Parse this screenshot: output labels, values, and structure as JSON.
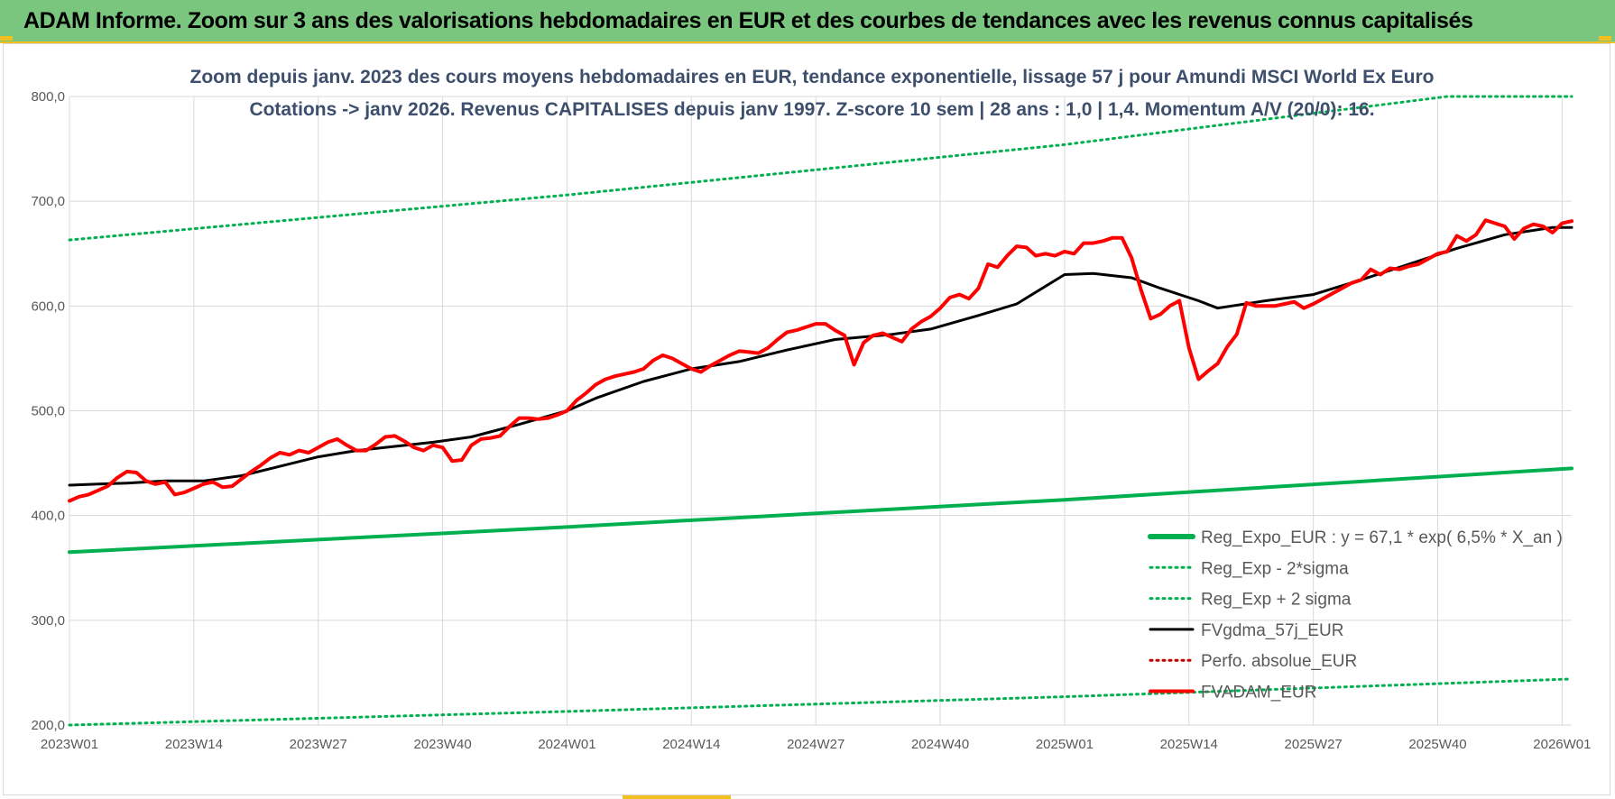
{
  "banner": {
    "title": "ADAM Informe. Zoom sur 3 ans des valorisations hebdomadaires en EUR et des courbes de tendances avec les revenus connus capitalisés"
  },
  "colors": {
    "banner_bg": "#7bc67e",
    "accent_yellow": "#f0c020",
    "reg_expo": "#00b050",
    "fvgdma": "#000000",
    "fvadam": "#ff0000",
    "perfo": "#c00000",
    "grid": "#d9d9d9",
    "title_text": "#3d4f6c"
  },
  "chart_data": {
    "type": "line",
    "title": "Zoom depuis janv. 2023 des cours moyens hebdomadaires en EUR, tendance exponentielle, lissage 57 j pour Amundi MSCI World Ex Euro",
    "subtitle": "Cotations -> janv 2026. Revenus CAPITALISES depuis janv 1997. Z-score 10 sem | 28 ans : 1,0 | 1,4. Momentum A/V (20/0): 16.",
    "xlabel": "",
    "ylabel": "",
    "ylim": [
      200,
      800
    ],
    "yticks": [
      "800,0",
      "700,0",
      "600,0",
      "500,0",
      "400,0",
      "300,0",
      "200,0"
    ],
    "xticks": [
      "2023W01",
      "2023W14",
      "2023W27",
      "2023W40",
      "2024W01",
      "2024W14",
      "2024W27",
      "2024W40",
      "2025W01",
      "2025W14",
      "2025W27",
      "2025W40",
      "2026W01"
    ],
    "x_unit": "weeks since 2023W01",
    "grid": true,
    "legend_position": "bottom-right",
    "series": [
      {
        "name": "Reg_Expo_EUR : y = 67,1 * exp( 6,5% *  X_an )",
        "style": "solid-thick",
        "color": "#00b050",
        "points": [
          [
            0,
            365
          ],
          [
            52,
            389
          ],
          [
            104,
            415
          ],
          [
            157,
            445
          ]
        ]
      },
      {
        "name": "Reg_Exp - 2*sigma",
        "style": "dotted",
        "color": "#00b050",
        "points": [
          [
            0,
            200
          ],
          [
            52,
            213
          ],
          [
            104,
            227
          ],
          [
            157,
            244
          ]
        ]
      },
      {
        "name": "Reg_Exp + 2 sigma",
        "style": "dotted",
        "color": "#00b050",
        "points": [
          [
            0,
            663
          ],
          [
            52,
            706
          ],
          [
            104,
            754
          ],
          [
            144,
            800
          ],
          [
            157,
            800
          ]
        ]
      },
      {
        "name": "FVgdma_57j_EUR",
        "style": "solid",
        "color": "#000000",
        "points": [
          [
            0,
            429
          ],
          [
            3,
            430
          ],
          [
            6,
            431
          ],
          [
            10,
            433
          ],
          [
            14,
            433
          ],
          [
            18,
            438
          ],
          [
            22,
            447
          ],
          [
            26,
            456
          ],
          [
            30,
            462
          ],
          [
            34,
            466
          ],
          [
            38,
            470
          ],
          [
            42,
            475
          ],
          [
            47,
            487
          ],
          [
            52,
            500
          ],
          [
            55,
            512
          ],
          [
            60,
            528
          ],
          [
            65,
            540
          ],
          [
            70,
            547
          ],
          [
            75,
            558
          ],
          [
            80,
            568
          ],
          [
            86,
            573
          ],
          [
            90,
            578
          ],
          [
            95,
            591
          ],
          [
            99,
            602
          ],
          [
            104,
            630
          ],
          [
            107,
            631
          ],
          [
            111,
            627
          ],
          [
            114,
            617
          ],
          [
            118,
            605
          ],
          [
            120,
            598
          ],
          [
            125,
            605
          ],
          [
            130,
            611
          ],
          [
            135,
            625
          ],
          [
            140,
            640
          ],
          [
            145,
            655
          ],
          [
            150,
            668
          ],
          [
            155,
            675
          ],
          [
            157,
            675
          ]
        ]
      },
      {
        "name": "Perfo. absolue_EUR",
        "style": "dotted",
        "color": "#c00000",
        "points": []
      },
      {
        "name": "FVADAM_EUR",
        "style": "solid-thick",
        "color": "#ff0000",
        "points": [
          [
            0,
            414
          ],
          [
            1,
            418
          ],
          [
            2,
            420
          ],
          [
            4,
            428
          ],
          [
            5,
            436
          ],
          [
            6,
            442
          ],
          [
            7,
            441
          ],
          [
            8,
            433
          ],
          [
            9,
            430
          ],
          [
            10,
            432
          ],
          [
            11,
            420
          ],
          [
            12,
            422
          ],
          [
            13,
            426
          ],
          [
            14,
            430
          ],
          [
            15,
            432
          ],
          [
            16,
            427
          ],
          [
            17,
            428
          ],
          [
            18,
            435
          ],
          [
            19,
            442
          ],
          [
            20,
            448
          ],
          [
            21,
            455
          ],
          [
            22,
            460
          ],
          [
            23,
            458
          ],
          [
            24,
            462
          ],
          [
            25,
            460
          ],
          [
            26,
            465
          ],
          [
            27,
            470
          ],
          [
            28,
            473
          ],
          [
            29,
            467
          ],
          [
            30,
            462
          ],
          [
            31,
            462
          ],
          [
            32,
            468
          ],
          [
            33,
            475
          ],
          [
            34,
            476
          ],
          [
            35,
            471
          ],
          [
            36,
            465
          ],
          [
            37,
            462
          ],
          [
            38,
            467
          ],
          [
            39,
            465
          ],
          [
            40,
            452
          ],
          [
            41,
            453
          ],
          [
            42,
            467
          ],
          [
            43,
            473
          ],
          [
            44,
            474
          ],
          [
            45,
            476
          ],
          [
            46,
            485
          ],
          [
            47,
            493
          ],
          [
            48,
            493
          ],
          [
            49,
            492
          ],
          [
            50,
            493
          ],
          [
            51,
            496
          ],
          [
            52,
            500
          ],
          [
            53,
            510
          ],
          [
            54,
            517
          ],
          [
            55,
            525
          ],
          [
            56,
            530
          ],
          [
            57,
            533
          ],
          [
            58,
            535
          ],
          [
            59,
            537
          ],
          [
            60,
            540
          ],
          [
            61,
            548
          ],
          [
            62,
            553
          ],
          [
            63,
            550
          ],
          [
            64,
            545
          ],
          [
            65,
            540
          ],
          [
            66,
            537
          ],
          [
            67,
            543
          ],
          [
            68,
            548
          ],
          [
            69,
            553
          ],
          [
            70,
            557
          ],
          [
            71,
            556
          ],
          [
            72,
            555
          ],
          [
            73,
            560
          ],
          [
            74,
            568
          ],
          [
            75,
            575
          ],
          [
            76,
            577
          ],
          [
            77,
            580
          ],
          [
            78,
            583
          ],
          [
            79,
            583
          ],
          [
            80,
            577
          ],
          [
            81,
            572
          ],
          [
            82,
            544
          ],
          [
            83,
            565
          ],
          [
            84,
            572
          ],
          [
            85,
            574
          ],
          [
            86,
            570
          ],
          [
            87,
            566
          ],
          [
            88,
            578
          ],
          [
            89,
            585
          ],
          [
            90,
            590
          ],
          [
            91,
            598
          ],
          [
            92,
            608
          ],
          [
            93,
            611
          ],
          [
            94,
            607
          ],
          [
            95,
            617
          ],
          [
            96,
            640
          ],
          [
            97,
            637
          ],
          [
            98,
            648
          ],
          [
            99,
            657
          ],
          [
            100,
            656
          ],
          [
            101,
            648
          ],
          [
            102,
            650
          ],
          [
            103,
            648
          ],
          [
            104,
            652
          ],
          [
            105,
            650
          ],
          [
            106,
            660
          ],
          [
            107,
            660
          ],
          [
            108,
            662
          ],
          [
            109,
            665
          ],
          [
            110,
            665
          ],
          [
            111,
            646
          ],
          [
            112,
            615
          ],
          [
            113,
            588
          ],
          [
            114,
            592
          ],
          [
            115,
            600
          ],
          [
            116,
            605
          ],
          [
            117,
            560
          ],
          [
            118,
            530
          ],
          [
            119,
            538
          ],
          [
            120,
            545
          ],
          [
            121,
            561
          ],
          [
            122,
            573
          ],
          [
            123,
            603
          ],
          [
            124,
            600
          ],
          [
            125,
            600
          ],
          [
            126,
            600
          ],
          [
            127,
            602
          ],
          [
            128,
            604
          ],
          [
            129,
            598
          ],
          [
            130,
            602
          ],
          [
            131,
            607
          ],
          [
            132,
            612
          ],
          [
            133,
            617
          ],
          [
            134,
            622
          ],
          [
            135,
            625
          ],
          [
            136,
            635
          ],
          [
            137,
            630
          ],
          [
            138,
            636
          ],
          [
            139,
            635
          ],
          [
            140,
            638
          ],
          [
            141,
            640
          ],
          [
            142,
            645
          ],
          [
            143,
            650
          ],
          [
            144,
            652
          ],
          [
            145,
            667
          ],
          [
            146,
            662
          ],
          [
            147,
            668
          ],
          [
            148,
            682
          ],
          [
            149,
            679
          ],
          [
            150,
            676
          ],
          [
            151,
            664
          ],
          [
            152,
            674
          ],
          [
            153,
            678
          ],
          [
            154,
            676
          ],
          [
            155,
            670
          ],
          [
            156,
            679
          ],
          [
            157,
            681
          ]
        ]
      }
    ]
  }
}
